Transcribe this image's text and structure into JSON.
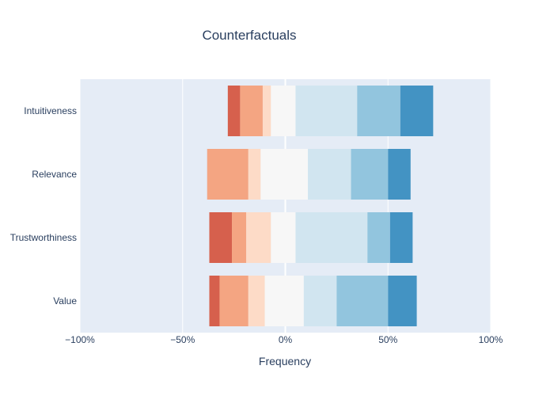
{
  "chart_data": {
    "type": "bar",
    "orientation": "horizontal",
    "stacked": "diverging",
    "title": "Counterfactuals",
    "xlabel": "Frequency",
    "ylabel": "",
    "xlim": [
      -100,
      100
    ],
    "x_ticks": [
      -100,
      -50,
      0,
      50,
      100
    ],
    "x_tick_labels": [
      "−100%",
      "−50%",
      "0%",
      "50%",
      "100%"
    ],
    "categories": [
      "Intuitiveness",
      "Relevance",
      "Trustworthiness",
      "Value"
    ],
    "grid": true,
    "legend": "none",
    "segment_colors": [
      "#d6604d",
      "#f4a582",
      "#fddbc7",
      "#f7f7f7",
      "#d1e5f0",
      "#92c5de",
      "#4393c3"
    ],
    "series": [
      {
        "values": [
          [
            -28,
            -22
          ],
          [
            -31,
            -38
          ],
          [
            -37,
            -26
          ],
          [
            -37,
            -32
          ]
        ]
      },
      {
        "values": [
          [
            -22,
            -11
          ],
          [
            -38,
            -18
          ],
          [
            -26,
            -19
          ],
          [
            -32,
            -18
          ]
        ]
      },
      {
        "values": [
          [
            -11,
            -7
          ],
          [
            -18,
            -12
          ],
          [
            -19,
            -7
          ],
          [
            -18,
            -10
          ]
        ]
      },
      {
        "values": [
          [
            -7,
            5
          ],
          [
            -12,
            11
          ],
          [
            -7,
            5
          ],
          [
            -10,
            9
          ]
        ]
      },
      {
        "values": [
          [
            5,
            35
          ],
          [
            11,
            32
          ],
          [
            5,
            40
          ],
          [
            9,
            25
          ]
        ]
      },
      {
        "values": [
          [
            35,
            56
          ],
          [
            32,
            50
          ],
          [
            40,
            51
          ],
          [
            25,
            50
          ]
        ]
      },
      {
        "values": [
          [
            56,
            72
          ],
          [
            50,
            61
          ],
          [
            51,
            62
          ],
          [
            50,
            64
          ]
        ]
      }
    ]
  }
}
